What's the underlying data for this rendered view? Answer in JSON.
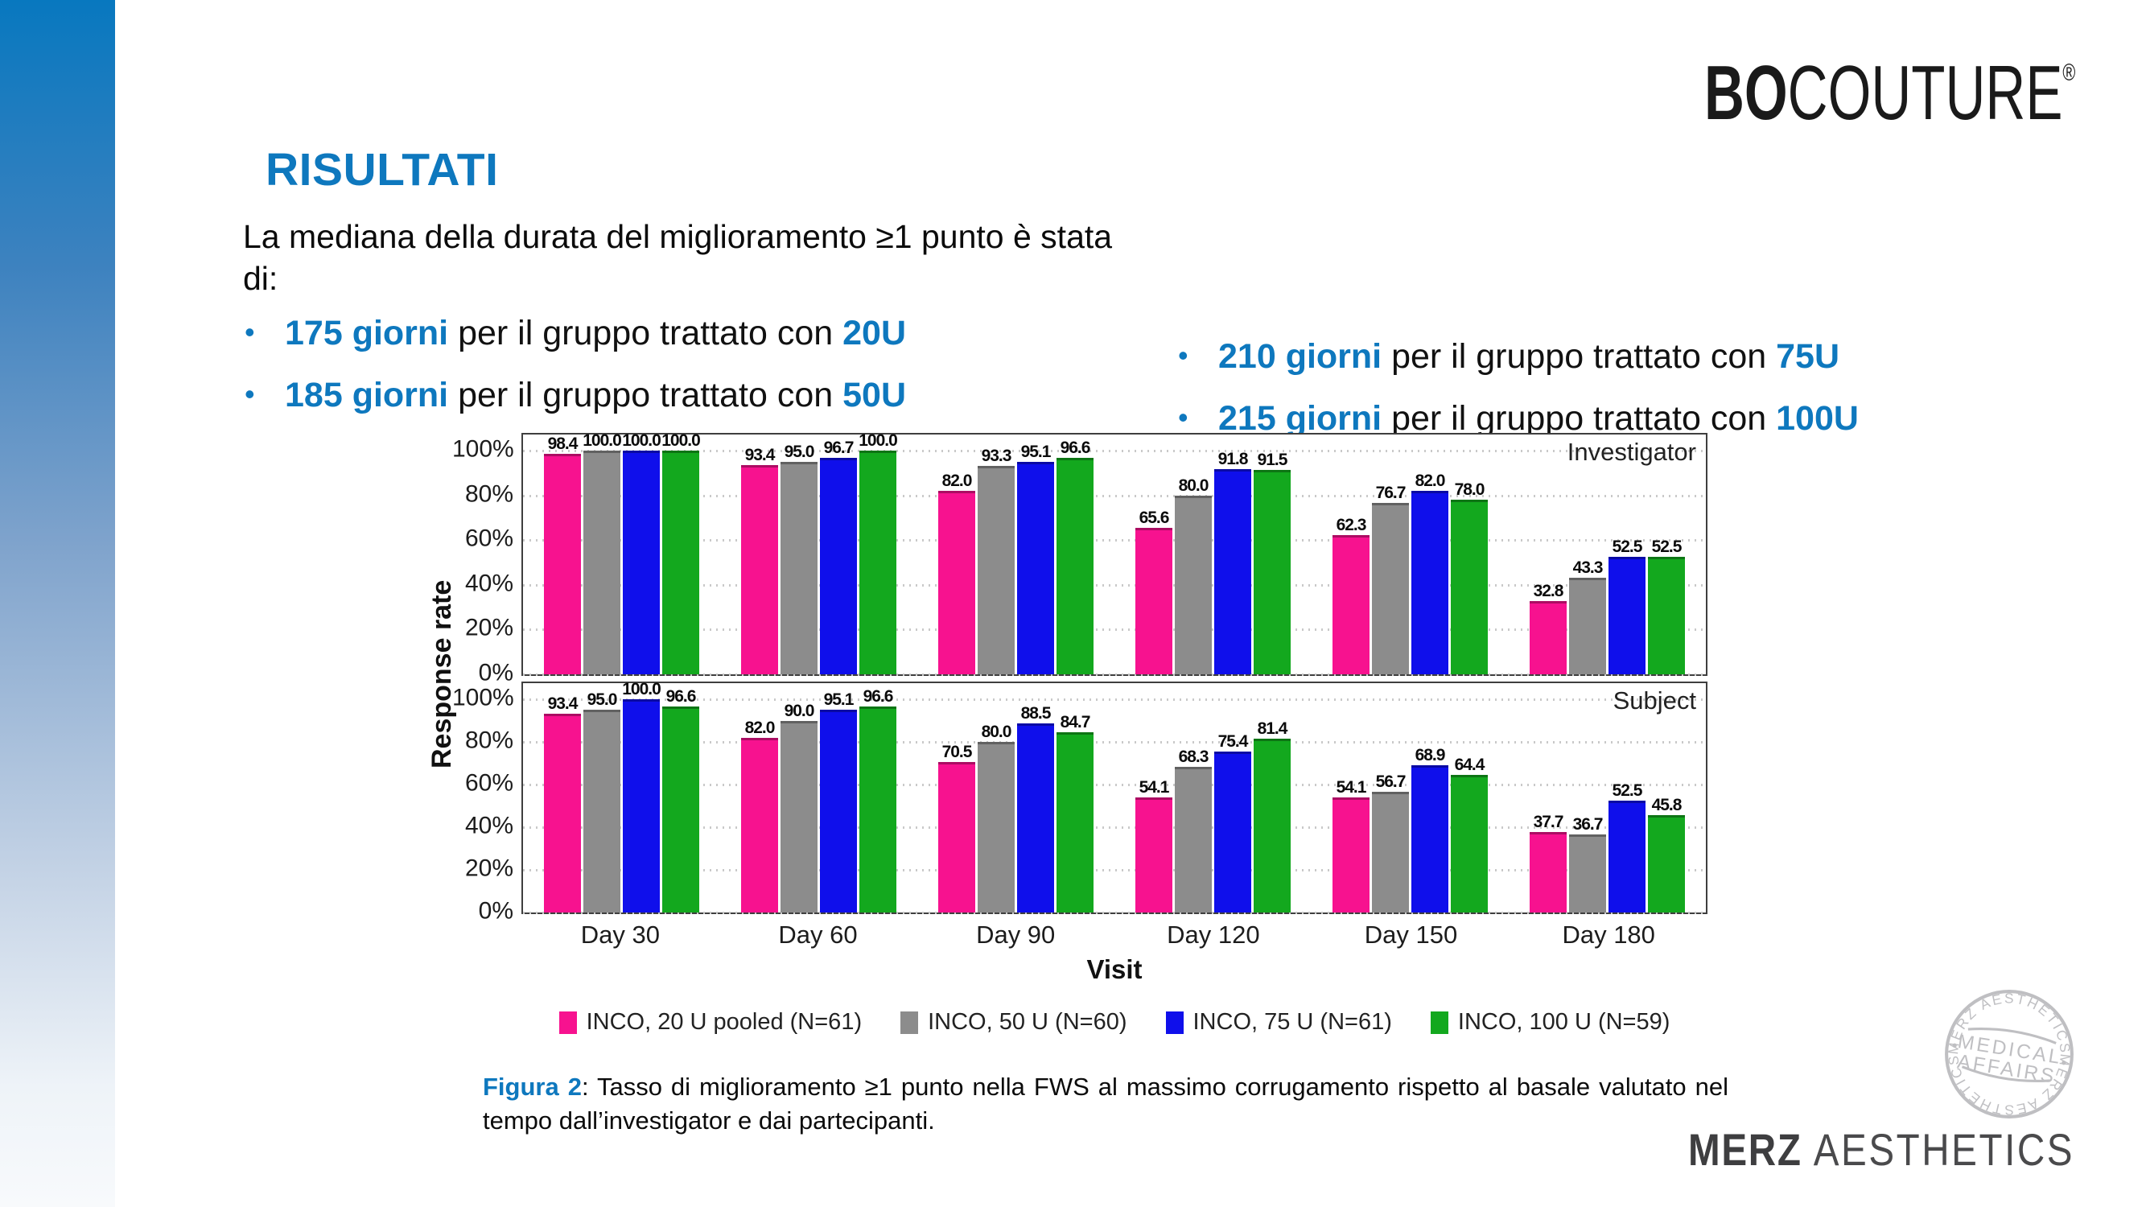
{
  "brand": {
    "logo_bold": "BO",
    "logo_light": "COUTURE",
    "registered": "®"
  },
  "title": "RISULTATI",
  "intro": {
    "line1": "La mediana della durata del miglioramento ≥1 punto è stata",
    "line2": "di:"
  },
  "bullet_char": "•",
  "bullets_left": [
    {
      "days": "175 giorni",
      "mid": " per il gruppo trattato con ",
      "dose": "20U"
    },
    {
      "days": "185 giorni",
      "mid": " per il gruppo trattato con ",
      "dose": "50U"
    }
  ],
  "bullets_right": [
    {
      "days": "210 giorni",
      "mid": " per il gruppo trattato con ",
      "dose": "75U"
    },
    {
      "days": "215 giorni",
      "mid": " per il gruppo trattato con ",
      "dose": "100U"
    }
  ],
  "chart_data": {
    "type": "bar",
    "categories": [
      "Day 30",
      "Day 60",
      "Day 90",
      "Day 120",
      "Day 150",
      "Day 180"
    ],
    "legend": [
      {
        "label": "INCO, 20 U pooled (N=61)",
        "color": "#F7128F"
      },
      {
        "label": "INCO, 50 U (N=60)",
        "color": "#8C8C8C"
      },
      {
        "label": "INCO, 75 U (N=61)",
        "color": "#0F0FEB"
      },
      {
        "label": "INCO, 100 U (N=59)",
        "color": "#13A81E"
      }
    ],
    "panels": [
      {
        "label": "Investigator",
        "series": [
          [
            98.4,
            93.4,
            82.0,
            65.6,
            62.3,
            32.8
          ],
          [
            100.0,
            95.0,
            93.3,
            80.0,
            76.7,
            43.3
          ],
          [
            100.0,
            96.7,
            95.1,
            91.8,
            82.0,
            52.5
          ],
          [
            100.0,
            100.0,
            96.6,
            91.5,
            78.0,
            52.5
          ]
        ]
      },
      {
        "label": "Subject",
        "series": [
          [
            93.4,
            82.0,
            70.5,
            54.1,
            54.1,
            37.7
          ],
          [
            95.0,
            90.0,
            80.0,
            68.3,
            56.7,
            36.7
          ],
          [
            100.0,
            95.1,
            88.5,
            75.4,
            68.9,
            52.5
          ],
          [
            96.6,
            96.6,
            84.7,
            81.4,
            64.4,
            45.8
          ]
        ]
      }
    ],
    "yticks": [
      100,
      80,
      60,
      40,
      20,
      0
    ],
    "ytick_suffix": "%",
    "ylabel": "Response rate",
    "xlabel": "Visit",
    "ylim": [
      0,
      100
    ],
    "grid": "dotted horizontal at each 20%",
    "legend_position": "bottom center"
  },
  "caption": {
    "label": "Figura 2",
    "line1_rest": ": Tasso di miglioramento ≥1 punto nella FWS al massimo corrugamento rispetto al basale valutato nel",
    "line2": "tempo dall’investigator e dai partecipanti."
  },
  "footer": {
    "stamp_arc_top": "MERZ AESTHETICS",
    "stamp_middle_line1": "MEDICAL",
    "stamp_middle_line2": "AFFAIRS",
    "stamp_arc_bottom": "MERZ AESTHETICS",
    "wordmark_bold": "MERZ",
    "wordmark_light": "AESTHETICS"
  },
  "colors": {
    "accent_blue": "#0E78BE",
    "sidebar_top": "#0878BF",
    "panel_border": "#3f3f3f",
    "stamp_gray": "#b4b4b8"
  }
}
